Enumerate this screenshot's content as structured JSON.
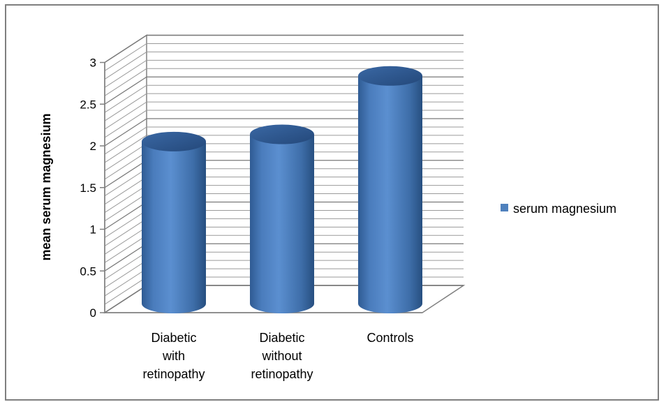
{
  "chart_data": {
    "type": "bar",
    "style": "3d-cylinder",
    "categories": [
      [
        "Diabetic",
        "with",
        "retinopathy"
      ],
      [
        "Diabetic",
        "without",
        "retinopathy"
      ],
      [
        "Controls"
      ]
    ],
    "series": [
      {
        "name": "serum magnesium",
        "values": [
          1.98,
          2.07,
          2.8
        ],
        "color": "#4f81bd"
      }
    ],
    "ylabel": "mean serum magnesium",
    "xlabel": "",
    "ylim": [
      0,
      3
    ],
    "yticks": [
      "0",
      "0.5",
      "1",
      "1.5",
      "2",
      "2.5",
      "3"
    ],
    "grid": true,
    "legend": "right"
  }
}
